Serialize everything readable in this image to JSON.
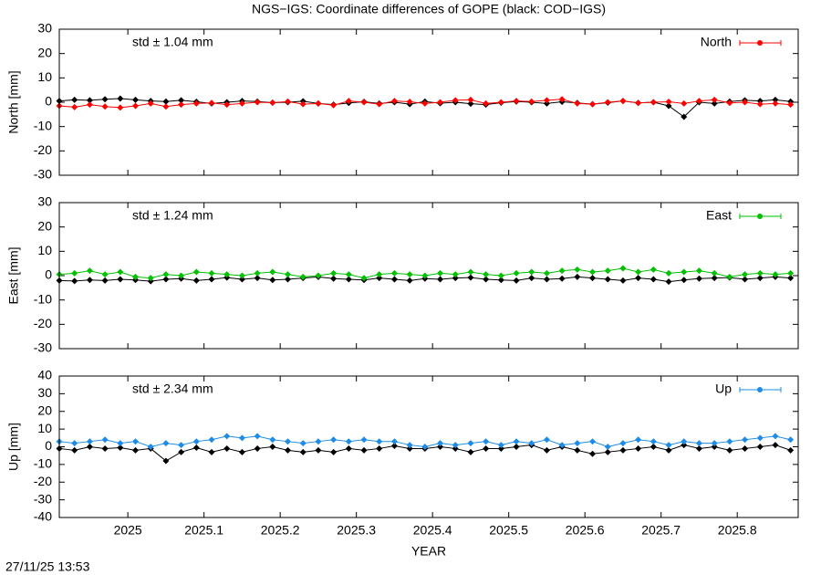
{
  "title": "NGS−IGS: Coordinate differences of GOPE (black: COD−IGS)",
  "timestamp": "27/11/25 13:53",
  "chart_data": [
    {
      "type": "scatter",
      "y_label": "North [mm]",
      "annotation": "std ± 1.04 mm",
      "legend": "top-right",
      "xlim": [
        2024.91,
        2025.88
      ],
      "xticks": [
        2025,
        2025.1,
        2025.2,
        2025.3,
        2025.4,
        2025.5,
        2025.6,
        2025.7,
        2025.8
      ],
      "ylim": [
        -30,
        30
      ],
      "yticks": [
        -30,
        -20,
        -10,
        0,
        10,
        20,
        30
      ],
      "x": [
        2024.91,
        2024.93,
        2024.95,
        2024.97,
        2024.99,
        2025.01,
        2025.03,
        2025.05,
        2025.07,
        2025.09,
        2025.11,
        2025.13,
        2025.15,
        2025.17,
        2025.19,
        2025.21,
        2025.23,
        2025.25,
        2025.27,
        2025.29,
        2025.31,
        2025.33,
        2025.35,
        2025.37,
        2025.39,
        2025.41,
        2025.43,
        2025.45,
        2025.47,
        2025.49,
        2025.51,
        2025.53,
        2025.55,
        2025.57,
        2025.59,
        2025.61,
        2025.63,
        2025.65,
        2025.67,
        2025.69,
        2025.71,
        2025.73,
        2025.75,
        2025.77,
        2025.79,
        2025.81,
        2025.83,
        2025.85,
        2025.87
      ],
      "series": [
        {
          "color": "#000000",
          "values": [
            0.5,
            1,
            0.8,
            1.2,
            1.5,
            1,
            0.5,
            0.3,
            0.8,
            0.2,
            -0.5,
            0,
            0.5,
            0.3,
            -0.2,
            0,
            0.4,
            -0.5,
            -1,
            -0.3,
            0.2,
            -0.5,
            0,
            -0.8,
            0.3,
            -0.4,
            0,
            -0.6,
            -1,
            -0.2,
            0.3,
            0,
            -0.5,
            0.2,
            -0.3,
            -0.8,
            -0.2,
            0.5,
            -0.3,
            0,
            -1.5,
            -6,
            0,
            -0.5,
            0.3,
            0.8,
            0.5,
            1,
            0.3
          ]
        },
        {
          "name": "North",
          "color": "#ff0000",
          "values": [
            -1.5,
            -2,
            -1,
            -1.8,
            -2.2,
            -1.5,
            -0.5,
            -1.8,
            -1,
            -0.5,
            -0.3,
            -1,
            -0.5,
            0,
            -0.2,
            0.3,
            -0.8,
            -0.5,
            -1.2,
            0.5,
            0,
            -0.8,
            0.5,
            0.2,
            -0.5,
            0,
            0.8,
            1,
            -0.5,
            0,
            0.5,
            0.3,
            0.8,
            1.2,
            -0.5,
            -0.8,
            0,
            0.5,
            -0.3,
            0,
            0.2,
            -0.5,
            0.5,
            1,
            -0.3,
            0,
            -0.8,
            -0.5,
            -1
          ]
        }
      ]
    },
    {
      "type": "scatter",
      "y_label": "East [mm]",
      "annotation": "std ± 1.24 mm",
      "legend": "top-right",
      "xlim": [
        2024.91,
        2025.88
      ],
      "xticks": [
        2025,
        2025.1,
        2025.2,
        2025.3,
        2025.4,
        2025.5,
        2025.6,
        2025.7,
        2025.8
      ],
      "ylim": [
        -30,
        30
      ],
      "yticks": [
        -30,
        -20,
        -10,
        0,
        10,
        20,
        30
      ],
      "x": [
        2024.91,
        2024.93,
        2024.95,
        2024.97,
        2024.99,
        2025.01,
        2025.03,
        2025.05,
        2025.07,
        2025.09,
        2025.11,
        2025.13,
        2025.15,
        2025.17,
        2025.19,
        2025.21,
        2025.23,
        2025.25,
        2025.27,
        2025.29,
        2025.31,
        2025.33,
        2025.35,
        2025.37,
        2025.39,
        2025.41,
        2025.43,
        2025.45,
        2025.47,
        2025.49,
        2025.51,
        2025.53,
        2025.55,
        2025.57,
        2025.59,
        2025.61,
        2025.63,
        2025.65,
        2025.67,
        2025.69,
        2025.71,
        2025.73,
        2025.75,
        2025.77,
        2025.79,
        2025.81,
        2025.83,
        2025.85,
        2025.87
      ],
      "series": [
        {
          "color": "#000000",
          "values": [
            -2,
            -2.2,
            -1.8,
            -2,
            -1.5,
            -1.8,
            -2.3,
            -1.5,
            -1.2,
            -2,
            -1.5,
            -0.8,
            -1.5,
            -1,
            -1.8,
            -1.5,
            -1,
            -0.5,
            -1.2,
            -1.5,
            -1.8,
            -1,
            -1.5,
            -2,
            -1.2,
            -1.5,
            -1,
            -0.8,
            -1.5,
            -1.8,
            -2,
            -1,
            -1.5,
            -1.2,
            -0.5,
            -1,
            -1.5,
            -2,
            -1,
            -1.5,
            -2.5,
            -1.8,
            -1.2,
            -1,
            -0.8,
            -1.5,
            -1,
            -0.5,
            -1
          ]
        },
        {
          "name": "East",
          "color": "#00c000",
          "values": [
            0.5,
            1,
            2,
            0.5,
            1.5,
            -0.5,
            -1,
            0.5,
            0,
            1.5,
            1,
            0.5,
            0,
            1,
            1.5,
            0.5,
            -0.5,
            0,
            1,
            0.5,
            -1,
            0.5,
            1,
            0.5,
            0,
            1,
            0.5,
            1.5,
            0.5,
            0,
            1,
            1.5,
            1,
            2,
            2.5,
            1.5,
            2,
            3,
            1.5,
            2.5,
            1,
            1.5,
            2,
            1,
            -0.5,
            0.5,
            1,
            0.5,
            1
          ]
        }
      ]
    },
    {
      "type": "scatter",
      "y_label": "Up [mm]",
      "x_label": "YEAR",
      "annotation": "std ± 2.34 mm",
      "legend": "top-right",
      "xlim": [
        2024.91,
        2025.88
      ],
      "xticks": [
        2025,
        2025.1,
        2025.2,
        2025.3,
        2025.4,
        2025.5,
        2025.6,
        2025.7,
        2025.8
      ],
      "ylim": [
        -40,
        40
      ],
      "yticks": [
        -40,
        -30,
        -20,
        -10,
        0,
        10,
        20,
        30,
        40
      ],
      "x": [
        2024.91,
        2024.93,
        2024.95,
        2024.97,
        2024.99,
        2025.01,
        2025.03,
        2025.05,
        2025.07,
        2025.09,
        2025.11,
        2025.13,
        2025.15,
        2025.17,
        2025.19,
        2025.21,
        2025.23,
        2025.25,
        2025.27,
        2025.29,
        2025.31,
        2025.33,
        2025.35,
        2025.37,
        2025.39,
        2025.41,
        2025.43,
        2025.45,
        2025.47,
        2025.49,
        2025.51,
        2025.53,
        2025.55,
        2025.57,
        2025.59,
        2025.61,
        2025.63,
        2025.65,
        2025.67,
        2025.69,
        2025.71,
        2025.73,
        2025.75,
        2025.77,
        2025.79,
        2025.81,
        2025.83,
        2025.85,
        2025.87
      ],
      "series": [
        {
          "color": "#000000",
          "values": [
            -1,
            -2,
            0,
            -1,
            -0.5,
            -2,
            -1,
            -8,
            -3,
            -0.5,
            -3,
            -1,
            -3,
            -1,
            0,
            -2,
            -3,
            -2,
            -3,
            -1,
            -2,
            -1,
            0.5,
            -1,
            -1,
            0,
            -1,
            -3,
            -1,
            -1,
            0,
            1,
            -2,
            0,
            -2,
            -4,
            -3,
            -2,
            -1,
            0,
            -2,
            1,
            -1,
            0,
            -2,
            -1,
            0,
            1,
            -2
          ]
        },
        {
          "name": "Up",
          "color": "#1e8ce6",
          "values": [
            3,
            2,
            3,
            4,
            2,
            3,
            0,
            2,
            1,
            3,
            4,
            6,
            5,
            6,
            4,
            3,
            2,
            3,
            4,
            3,
            4,
            3,
            3,
            1,
            0,
            2,
            1,
            2,
            3,
            1,
            3,
            2,
            4,
            1,
            2,
            3,
            0,
            2,
            4,
            3,
            1,
            3,
            2,
            2,
            3,
            4,
            5,
            6,
            4
          ]
        }
      ]
    }
  ]
}
